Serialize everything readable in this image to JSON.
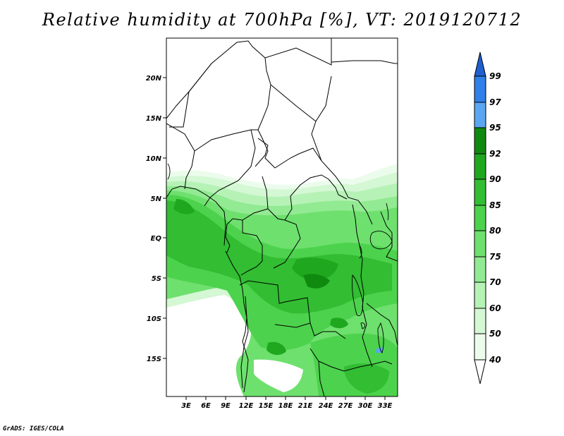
{
  "title": "Relative humidity at 700hPa [%], VT: 2019120712",
  "footer": "GrADS: IGES/COLA",
  "map": {
    "lat_labels": [
      "20N",
      "15N",
      "10N",
      "5N",
      "EQ",
      "5S",
      "10S",
      "15S"
    ],
    "lon_labels": [
      "3E",
      "6E",
      "9E",
      "12E",
      "15E",
      "18E",
      "21E",
      "24E",
      "27E",
      "30E",
      "33E"
    ]
  },
  "colorbar": {
    "levels": [
      "99",
      "97",
      "95",
      "92",
      "90",
      "85",
      "80",
      "75",
      "70",
      "60",
      "50",
      "40"
    ],
    "colors": [
      "#1f5fd0",
      "#2f80e8",
      "#5aa6f2",
      "#0f8a0f",
      "#1fa81f",
      "#32bd32",
      "#4dd24d",
      "#6ee06e",
      "#92ea92",
      "#b6f2b6",
      "#d4f7d4",
      "#ecfcec",
      "#ffffff"
    ]
  }
}
